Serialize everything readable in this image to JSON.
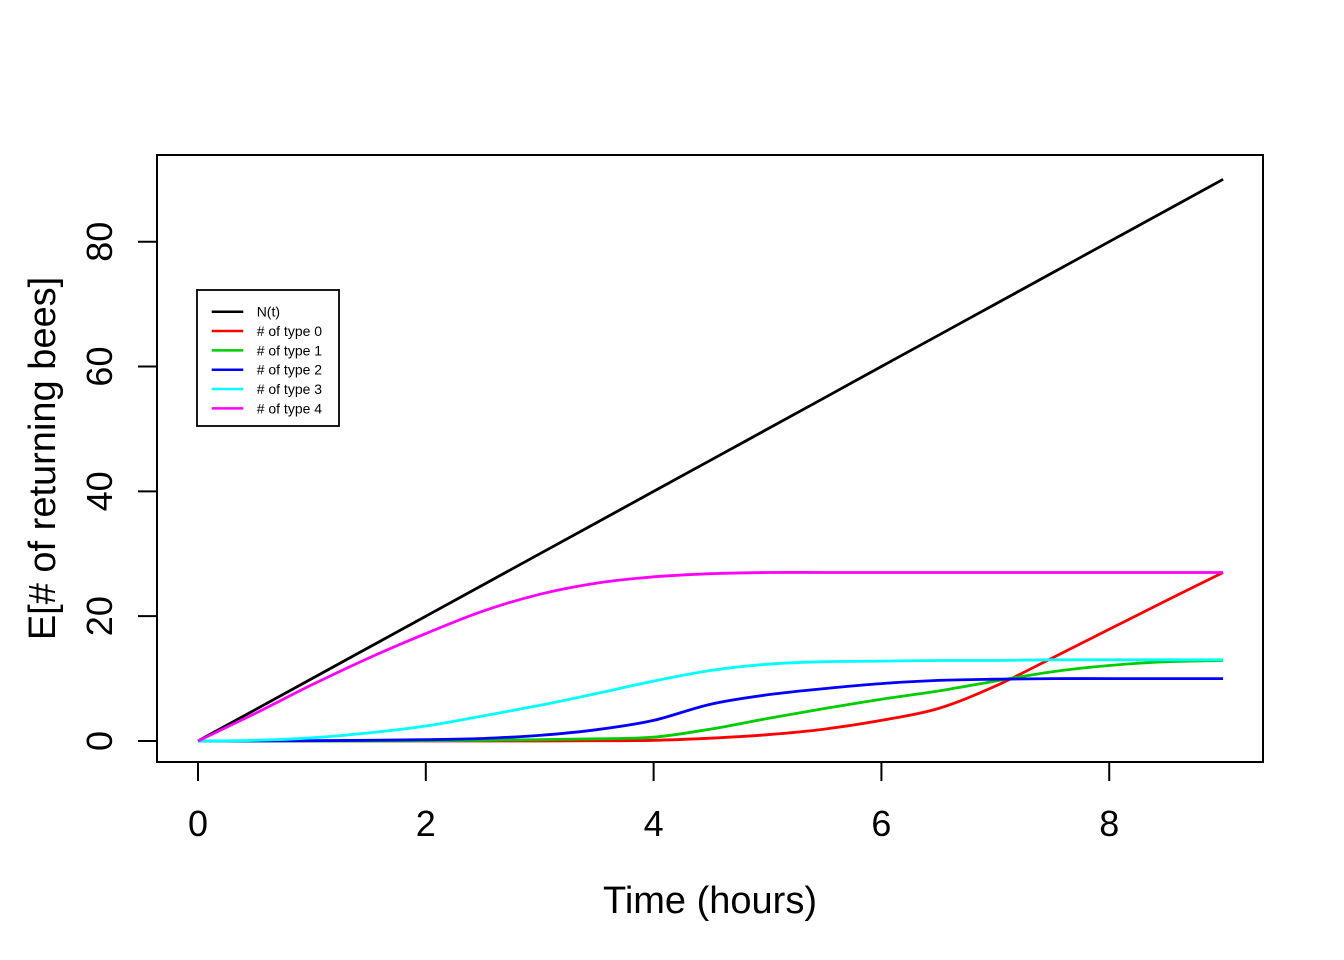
{
  "figure": {
    "background_color": "#ffffff",
    "axis_color": "#000000"
  },
  "chart_data": {
    "type": "line",
    "title": "",
    "xlabel": "Time (hours)",
    "ylabel": "E[# of returning bees]",
    "x_ticks": [
      0,
      2,
      4,
      6,
      8
    ],
    "y_ticks": [
      0,
      20,
      40,
      60,
      80
    ],
    "xlim": [
      0,
      9
    ],
    "ylim": [
      0,
      90
    ],
    "grid": false,
    "legend_position": "top-left-inside",
    "x": [
      0,
      0.5,
      1,
      1.5,
      2,
      2.5,
      3,
      3.5,
      4,
      4.5,
      5,
      5.5,
      6,
      6.5,
      7,
      7.5,
      8,
      8.5,
      9
    ],
    "series": [
      {
        "name": "N(t)",
        "color": "#000000",
        "values": [
          0,
          5,
          10,
          15,
          20,
          25,
          30,
          35,
          40,
          45,
          50,
          55,
          60,
          65,
          70,
          75,
          80,
          85,
          90
        ]
      },
      {
        "name": "# of type 0",
        "color": "#FF0000",
        "values": [
          0,
          0,
          0,
          0,
          0,
          0,
          0,
          0.05,
          0.1,
          0.45,
          1.0,
          1.9,
          3.3,
          5.2,
          8.8,
          13.3,
          17.9,
          22.5,
          27.0
        ]
      },
      {
        "name": "# of type 1",
        "color": "#00CD00",
        "values": [
          0,
          0,
          0,
          0,
          0.05,
          0.1,
          0.2,
          0.35,
          0.6,
          1.9,
          3.6,
          5.2,
          6.7,
          8.0,
          9.6,
          11.1,
          12.1,
          12.7,
          12.9
        ]
      },
      {
        "name": "# of type 2",
        "color": "#0000FF",
        "values": [
          0,
          0,
          0.05,
          0.1,
          0.2,
          0.4,
          0.9,
          1.8,
          3.3,
          5.9,
          7.4,
          8.4,
          9.2,
          9.7,
          9.9,
          10.0,
          10.0,
          10.0,
          10.0
        ]
      },
      {
        "name": "# of type 3",
        "color": "#00FFFF",
        "values": [
          0,
          0.1,
          0.5,
          1.3,
          2.4,
          4.0,
          5.7,
          7.6,
          9.6,
          11.3,
          12.3,
          12.7,
          12.8,
          12.9,
          12.9,
          13.0,
          13.0,
          13.0,
          13.0
        ]
      },
      {
        "name": "# of type 4",
        "color": "#FF00FF",
        "values": [
          0,
          4.4,
          9.0,
          13.3,
          17.2,
          20.8,
          23.5,
          25.3,
          26.3,
          26.8,
          27.0,
          27.0,
          27.0,
          27.0,
          27.0,
          27.0,
          27.0,
          27.0,
          27.0
        ]
      }
    ]
  }
}
